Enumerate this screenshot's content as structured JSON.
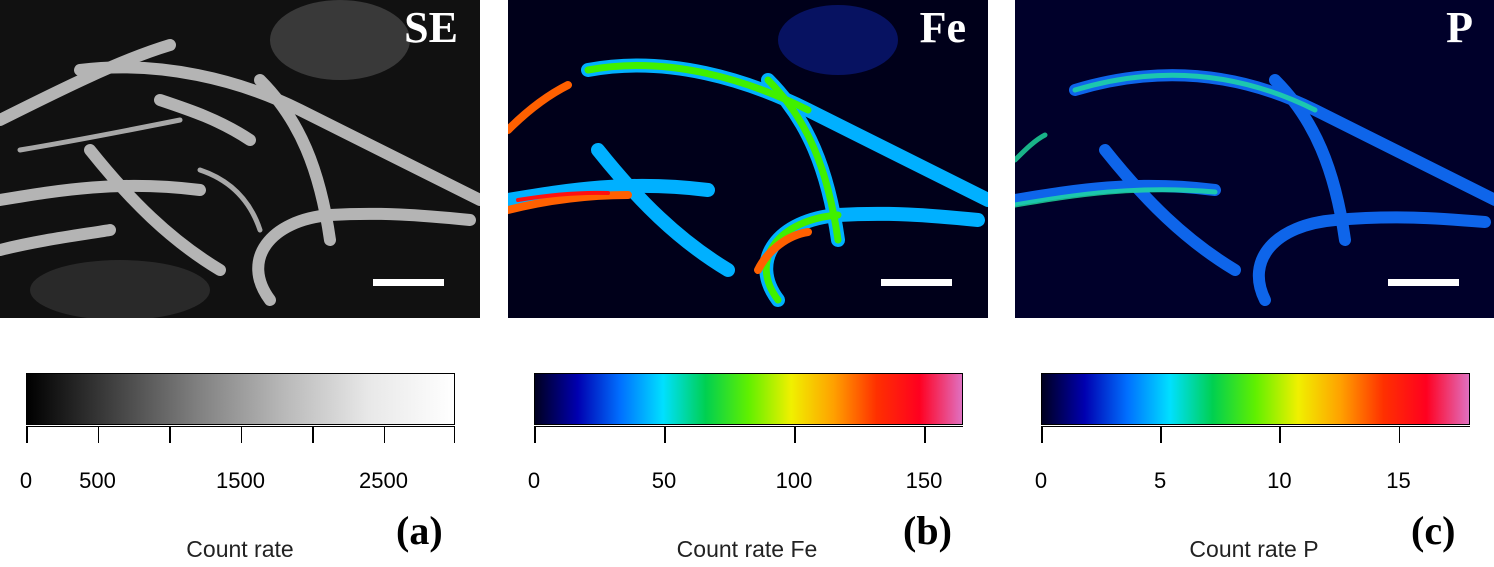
{
  "panels": [
    {
      "channel": "SE",
      "letter": "(a)",
      "axis_title": "Count rate",
      "colormap": "grayscale",
      "colorbar_colors": [
        "#000000",
        "#404040",
        "#808080",
        "#b8b8b8",
        "#e8e8e8",
        "#ffffff"
      ],
      "ticks": [
        "0",
        "500",
        "",
        "1500",
        "",
        "2500",
        ""
      ],
      "range": [
        0,
        3000
      ]
    },
    {
      "channel": "Fe",
      "letter": "(b)",
      "axis_title": "Count rate Fe",
      "colormap": "jet-magenta",
      "colorbar_colors": [
        "#000020",
        "#0000b0",
        "#0070ff",
        "#00e0ff",
        "#00d050",
        "#60f000",
        "#f0f000",
        "#ffa000",
        "#ff3000",
        "#ff0020",
        "#e070c0"
      ],
      "ticks": [
        "0",
        "50",
        "100",
        "150"
      ],
      "range": [
        0,
        165
      ]
    },
    {
      "channel": "P",
      "letter": "(c)",
      "axis_title": "Count rate P",
      "colormap": "jet-magenta",
      "colorbar_colors": [
        "#000020",
        "#0000b0",
        "#0070ff",
        "#00e0ff",
        "#00d050",
        "#60f000",
        "#f0f000",
        "#ffa000",
        "#ff3000",
        "#ff0020",
        "#e070c0"
      ],
      "ticks": [
        "0",
        "5",
        "10",
        "15"
      ],
      "range": [
        0,
        18
      ]
    }
  ]
}
